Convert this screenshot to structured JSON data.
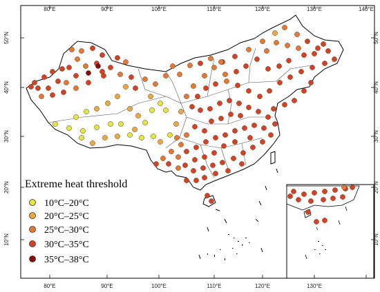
{
  "map": {
    "x_ticks": [
      "80°E",
      "90°E",
      "100°E",
      "110°E",
      "120°E",
      "130°E",
      "140°E"
    ],
    "y_ticks": [
      "50°N",
      "40°N",
      "30°N",
      "20°N",
      "10°N"
    ],
    "inset_x_ticks": [
      "130°E"
    ],
    "lon_range": [
      73,
      140
    ],
    "lat_range": [
      3,
      55
    ]
  },
  "legend": {
    "title": "Extreme heat threshold",
    "items": [
      {
        "label": "10°C–20°C",
        "color": "#e6e63c"
      },
      {
        "label": "20°C–25°C",
        "color": "#f0a83c"
      },
      {
        "label": "25°C–30°C",
        "color": "#e8782d"
      },
      {
        "label": "30°C–35°C",
        "color": "#d8401e"
      },
      {
        "label": "35°C–38°C",
        "color": "#8b0a0a"
      }
    ]
  },
  "colors": {
    "land_fill": "#ffffff",
    "border": "#000000",
    "province_border": "#555555"
  }
}
